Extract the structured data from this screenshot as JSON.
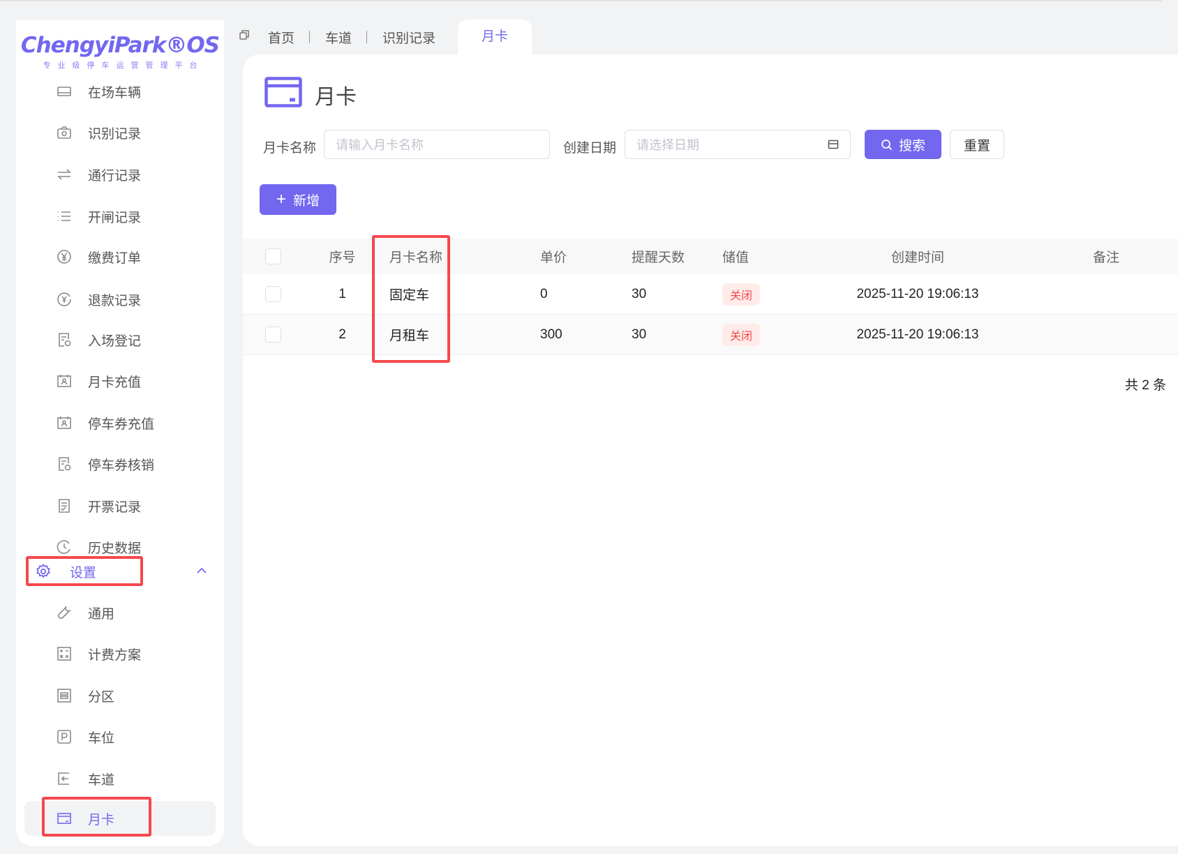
{
  "brand": {
    "name": "ChengyiPark®OS",
    "subtitle": "专业级停车运营管理平台"
  },
  "colors": {
    "accent": "#7367f0",
    "danger": "#f5484d",
    "highlight": "#f5484d"
  },
  "sidebar": {
    "items": [
      {
        "label": "在场车辆",
        "icon": "car-icon"
      },
      {
        "label": "识别记录",
        "icon": "camera-icon"
      },
      {
        "label": "通行记录",
        "icon": "swap-icon"
      },
      {
        "label": "开闸记录",
        "icon": "list-icon"
      },
      {
        "label": "缴费订单",
        "icon": "yen-icon"
      },
      {
        "label": "退款记录",
        "icon": "refund-icon"
      },
      {
        "label": "入场登记",
        "icon": "form-icon"
      },
      {
        "label": "月卡充值",
        "icon": "calendar-user-icon"
      },
      {
        "label": "停车券充值",
        "icon": "calendar-user-icon"
      },
      {
        "label": "停车券核销",
        "icon": "form-icon"
      },
      {
        "label": "开票记录",
        "icon": "invoice-icon"
      },
      {
        "label": "历史数据",
        "icon": "history-icon"
      }
    ],
    "group": {
      "label": "设置",
      "icon": "gear-icon",
      "expanded": true
    },
    "sub_items": [
      {
        "label": "通用",
        "icon": "wrench-icon"
      },
      {
        "label": "计费方案",
        "icon": "calculator-icon"
      },
      {
        "label": "分区",
        "icon": "zone-icon"
      },
      {
        "label": "车位",
        "icon": "parking-icon"
      },
      {
        "label": "车道",
        "icon": "lane-icon"
      },
      {
        "label": "月卡",
        "icon": "card-icon",
        "active": true
      }
    ]
  },
  "tabs": [
    {
      "label": "首页"
    },
    {
      "label": "车道"
    },
    {
      "label": "识别记录"
    },
    {
      "label": "月卡",
      "active": true
    }
  ],
  "page": {
    "title": "月卡"
  },
  "filters": {
    "name_label": "月卡名称",
    "name_placeholder": "请输入月卡名称",
    "date_label": "创建日期",
    "date_placeholder": "请选择日期",
    "search": "搜索",
    "reset": "重置"
  },
  "add_button": "新增",
  "table": {
    "columns": [
      "序号",
      "月卡名称",
      "单价",
      "提醒天数",
      "储值",
      "创建时间",
      "备注"
    ],
    "rows": [
      {
        "index": "1",
        "name": "固定车",
        "price": "0",
        "remind_days": "30",
        "stored_value": "关闭",
        "created": "2025-11-20 19:06:13",
        "remark": ""
      },
      {
        "index": "2",
        "name": "月租车",
        "price": "300",
        "remind_days": "30",
        "stored_value": "关闭",
        "created": "2025-11-20 19:06:13",
        "remark": ""
      }
    ]
  },
  "pagination": {
    "total_text": "共 2 条"
  }
}
